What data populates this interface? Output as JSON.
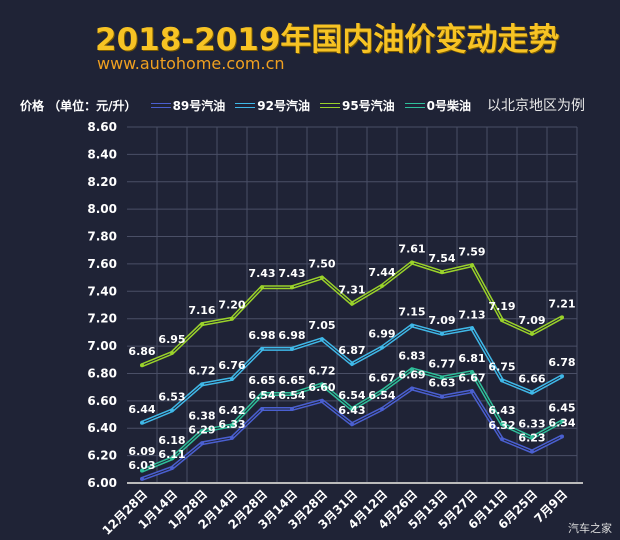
{
  "header": {
    "title": "2018-2019年国内油价变动走势",
    "url": "www.autohome.com.cn"
  },
  "legend": {
    "unit": "价格 （单位：元/升）",
    "note": "以北京地区为例"
  },
  "watermark": "汽车之家",
  "chart_data": {
    "type": "line",
    "title": "2018-2019年国内油价变动走势",
    "ylabel": "价格 （单位：元/升）",
    "ylim": [
      6.0,
      8.6
    ],
    "yticks": [
      "6.00",
      "6.20",
      "6.40",
      "6.60",
      "6.80",
      "7.00",
      "7.20",
      "7.40",
      "7.60",
      "7.80",
      "8.00",
      "8.20",
      "8.40",
      "8.60"
    ],
    "grid": true,
    "legend_placement": "top",
    "categories": [
      "12月28日",
      "1月14日",
      "1月28日",
      "2月14日",
      "2月28日",
      "3月14日",
      "3月28日",
      "3月31日",
      "4月12日",
      "4月26日",
      "5月13日",
      "5月27日",
      "6月11日",
      "6月25日",
      "7月9日"
    ],
    "series": [
      {
        "name": "89号汽油",
        "color": "#4a5fd0",
        "values": [
          6.03,
          6.11,
          6.29,
          6.33,
          6.54,
          6.54,
          6.6,
          6.43,
          6.54,
          6.69,
          6.63,
          6.67,
          6.32,
          6.23,
          6.34
        ]
      },
      {
        "name": "92号汽油",
        "color": "#3fb8e8",
        "values": [
          6.44,
          6.53,
          6.72,
          6.76,
          6.98,
          6.98,
          7.05,
          6.87,
          6.99,
          7.15,
          7.09,
          7.13,
          6.75,
          6.66,
          6.78
        ]
      },
      {
        "name": "95号汽油",
        "color": "#9ad22a",
        "values": [
          6.86,
          6.95,
          7.16,
          7.2,
          7.43,
          7.43,
          7.5,
          7.31,
          7.44,
          7.61,
          7.54,
          7.59,
          7.19,
          7.09,
          7.21
        ]
      },
      {
        "name": "0号柴油",
        "color": "#2fbf9a",
        "values": [
          6.09,
          6.18,
          6.38,
          6.42,
          6.65,
          6.65,
          6.72,
          6.54,
          6.67,
          6.83,
          6.77,
          6.81,
          6.43,
          6.33,
          6.45
        ]
      }
    ]
  }
}
